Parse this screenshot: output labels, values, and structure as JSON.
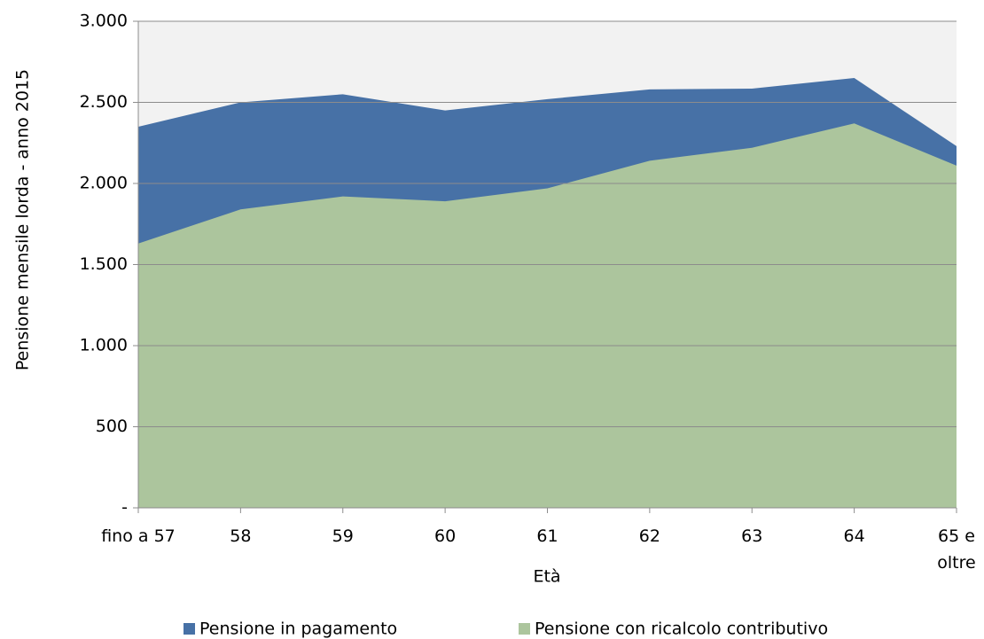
{
  "chart_data": {
    "type": "area",
    "categories": [
      "fino a 57",
      "58",
      "59",
      "60",
      "61",
      "62",
      "63",
      "64",
      "65 e oltre"
    ],
    "series": [
      {
        "name": "Pensione in pagamento",
        "color": "#4771a6",
        "values": [
          2350,
          2500,
          2550,
          2450,
          2520,
          2580,
          2585,
          2650,
          2230
        ]
      },
      {
        "name": "Pensione con ricalcolo contributivo",
        "color": "#acc59d",
        "values": [
          1630,
          1840,
          1920,
          1890,
          1970,
          2140,
          2220,
          2370,
          2110
        ]
      }
    ],
    "xlabel": "Età",
    "ylabel": "Pensione mensile lorda - anno 2015",
    "ylim": [
      0,
      3000
    ],
    "yticks": [
      {
        "value": 0,
        "label": "-"
      },
      500,
      {
        "value": 1000,
        "label": "1.000"
      },
      {
        "value": 1500,
        "label": "1.500"
      },
      {
        "value": 2000,
        "label": "2.000"
      },
      {
        "value": 2500,
        "label": "2.500"
      },
      {
        "value": 3000,
        "label": "3.000"
      }
    ],
    "grid": true,
    "legend": "bottom"
  }
}
